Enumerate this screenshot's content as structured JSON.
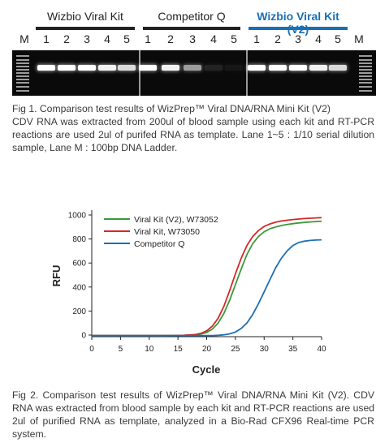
{
  "figure1": {
    "kits": [
      {
        "name": "Wizbio Viral Kit",
        "brand": false
      },
      {
        "name": "Competitor Q",
        "brand": false
      },
      {
        "name": "Wizbio Viral Kit (V2)",
        "brand": true
      }
    ],
    "lane_labels": [
      "M",
      "1",
      "2",
      "3",
      "4",
      "5",
      "1",
      "2",
      "3",
      "4",
      "5",
      "1",
      "2",
      "3",
      "4",
      "5",
      "M"
    ],
    "band_intensity": [
      [
        1.0,
        1.0,
        1.0,
        0.95,
        0.85
      ],
      [
        1.0,
        0.95,
        0.6,
        0.1,
        0.05
      ],
      [
        1.0,
        1.0,
        1.0,
        0.95,
        0.85
      ]
    ],
    "caption": [
      "Fig 1. Comparison test results of WizPrep™ Viral DNA/RNA Mini Kit (V2)",
      "CDV RNA was extracted from 200ul of blood sample using each kit and RT-PCR reactions are used 2ul of purifed RNA as template. Lane 1~5 : 1/10 serial dilution sample, Lane M : 100bp DNA Ladder."
    ]
  },
  "chart_data": {
    "type": "line",
    "title": "",
    "xlabel": "Cycle",
    "ylabel": "RFU",
    "xlim": [
      0,
      40
    ],
    "ylim": [
      0,
      1000
    ],
    "xticks": [
      "0",
      "5",
      "10",
      "15",
      "20",
      "25",
      "30",
      "35",
      "40"
    ],
    "yticks": [
      "0",
      "200",
      "400",
      "600",
      "800",
      "1000"
    ],
    "legend_position": "top-left",
    "grid": false,
    "x": [
      0,
      2,
      4,
      6,
      8,
      10,
      12,
      14,
      16,
      18,
      19,
      20,
      21,
      22,
      23,
      24,
      25,
      26,
      27,
      28,
      29,
      30,
      31,
      32,
      33,
      34,
      35,
      36,
      37,
      38,
      39,
      40
    ],
    "series": [
      {
        "name": "Viral Kit (V2), W73052",
        "color": "#3a9a3a",
        "values": [
          -5,
          -5,
          -5,
          -5,
          -5,
          -5,
          -5,
          -4,
          -3,
          2,
          8,
          22,
          50,
          100,
          180,
          290,
          420,
          550,
          670,
          760,
          820,
          860,
          885,
          900,
          912,
          920,
          928,
          934,
          938,
          942,
          945,
          948
        ]
      },
      {
        "name": "Viral Kit, W73050",
        "color": "#d62728",
        "values": [
          -5,
          -5,
          -5,
          -5,
          -5,
          -5,
          -5,
          -4,
          -2,
          4,
          14,
          35,
          75,
          140,
          240,
          370,
          510,
          640,
          745,
          820,
          870,
          905,
          925,
          940,
          950,
          956,
          962,
          966,
          970,
          973,
          976,
          978
        ]
      },
      {
        "name": "Competitor Q",
        "color": "#1f6fb0",
        "values": [
          -5,
          -5,
          -5,
          -5,
          -5,
          -5,
          -5,
          -5,
          -5,
          -5,
          -5,
          -5,
          -4,
          -2,
          2,
          10,
          25,
          55,
          100,
          170,
          260,
          360,
          460,
          560,
          640,
          700,
          745,
          770,
          782,
          788,
          791,
          793
        ]
      }
    ]
  },
  "figure2": {
    "caption": "Fig 2.  Comparison test results of WizPrep™ Viral DNA/RNA Mini Kit (V2). CDV RNA was extracted from blood sample by each kit and RT-PCR reactions are used 2ul of purified RNA as template, analyzed in a Bio-Rad CFX96 Real-time PCR system."
  }
}
